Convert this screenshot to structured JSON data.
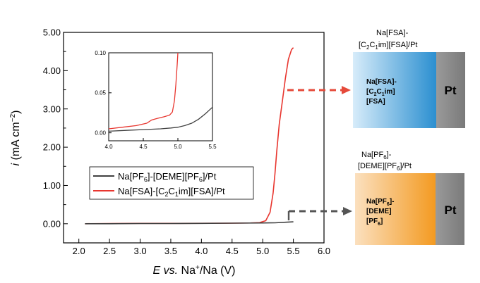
{
  "chart_data": {
    "type": "line",
    "xlabel": "E vs. Na+/Na (V)",
    "ylabel": "i (mA cm−2)",
    "xlim": [
      1.75,
      6.0
    ],
    "ylim": [
      -0.5,
      5.0
    ],
    "xticks": [
      "2.0",
      "2.5",
      "3.0",
      "3.5",
      "4.0",
      "4.5",
      "5.0",
      "5.5",
      "6.0"
    ],
    "yticks": [
      "0.00",
      "1.00",
      "2.00",
      "3.00",
      "4.00",
      "5.00"
    ],
    "legend_position": "lower-left",
    "series": [
      {
        "name": "Na[PF6]-[DEME][PF6]/Pt",
        "color": "#404040",
        "x": [
          2.1,
          2.5,
          3.0,
          3.5,
          4.0,
          4.5,
          5.0,
          5.2,
          5.4,
          5.5
        ],
        "y": [
          0.0,
          0.0,
          0.005,
          0.005,
          0.01,
          0.015,
          0.02,
          0.025,
          0.04,
          0.05
        ]
      },
      {
        "name": "Na[FSA]-[C2C1im][FSA]/Pt",
        "color": "#e8362f",
        "x": [
          2.1,
          2.5,
          3.0,
          3.5,
          4.0,
          4.5,
          4.8,
          4.95,
          5.05,
          5.12,
          5.17,
          5.2,
          5.23,
          5.27,
          5.32,
          5.37,
          5.42,
          5.47,
          5.5
        ],
        "y": [
          0.0,
          0.005,
          0.01,
          0.01,
          0.012,
          0.015,
          0.02,
          0.03,
          0.08,
          0.3,
          0.8,
          1.3,
          1.9,
          2.6,
          3.2,
          3.8,
          4.3,
          4.55,
          4.6
        ]
      }
    ],
    "inset": {
      "xlim": [
        4.0,
        5.5
      ],
      "ylim": [
        -0.01,
        0.1
      ],
      "xticks": [
        "4.0",
        "4.5",
        "5.0",
        "5.5"
      ],
      "yticks": [
        "0.00",
        "0.05",
        "0.10"
      ],
      "series": [
        {
          "color": "#404040",
          "x": [
            4.0,
            4.25,
            4.5,
            4.75,
            4.9,
            5.0,
            5.1,
            5.2,
            5.3,
            5.4,
            5.5
          ],
          "y": [
            0.002,
            0.003,
            0.004,
            0.005,
            0.006,
            0.007,
            0.009,
            0.012,
            0.017,
            0.024,
            0.032
          ]
        },
        {
          "color": "#e8362f",
          "x": [
            4.0,
            4.2,
            4.4,
            4.55,
            4.62,
            4.7,
            4.8,
            4.88,
            4.92,
            4.95,
            4.97,
            4.99,
            5.0
          ],
          "y": [
            0.005,
            0.007,
            0.009,
            0.012,
            0.016,
            0.018,
            0.02,
            0.022,
            0.026,
            0.04,
            0.06,
            0.085,
            0.1
          ]
        }
      ]
    }
  },
  "cells": {
    "fsa": {
      "caption_l1": "Na[FSA]-",
      "caption_l2": "[C2C1im][FSA]/Pt",
      "box_l1": "Na[FSA]-",
      "box_l2": "[C2C1im]",
      "box_l3": "[FSA]",
      "metal": "Pt",
      "gradient": [
        "#d7ecfa",
        "#2b8fd0"
      ]
    },
    "pf6": {
      "caption_l1": "Na[PF6]-",
      "caption_l2": "[DEME][PF6]/Pt",
      "box_l1": "Na[PF6]-",
      "box_l2": "[DEME]",
      "box_l3": "[PF6]",
      "metal": "Pt",
      "gradient": [
        "#fbe0bf",
        "#f39a21"
      ]
    }
  }
}
